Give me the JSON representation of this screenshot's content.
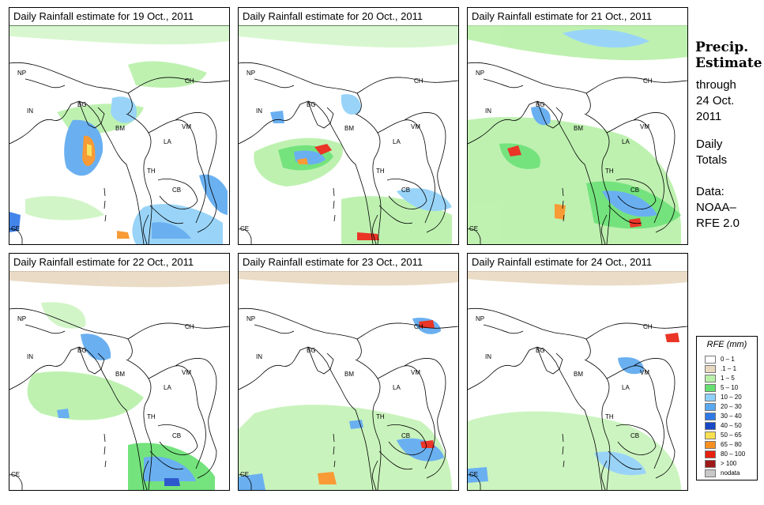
{
  "panels": [
    {
      "title": "Daily Rainfall estimate for  19 Oct., 2011"
    },
    {
      "title": "Daily Rainfall estimate for  20 Oct., 2011"
    },
    {
      "title": "Daily Rainfall estimate for  21 Oct., 2011"
    },
    {
      "title": "Daily Rainfall estimate for  22 Oct., 2011"
    },
    {
      "title": "Daily Rainfall estimate for  23 Oct., 2011"
    },
    {
      "title": "Daily Rainfall estimate for  24 Oct., 2011"
    }
  ],
  "country_labels": {
    "np": "NP",
    "in": "IN",
    "bg": "BG",
    "bm": "BM",
    "ch": "CH",
    "vm": "VM",
    "la": "LA",
    "th": "TH",
    "cb": "CB",
    "ce": "CE"
  },
  "side": {
    "title_line1": "Precip.",
    "title_line2": "Estimate",
    "through_line1": "through",
    "through_line2": "24 Oct.",
    "through_line3": "2011",
    "daily_line1": "Daily",
    "daily_line2": "Totals",
    "source_line1": "Data:",
    "source_line2": "NOAA–",
    "source_line3": "RFE 2.0"
  },
  "legend": {
    "title": "RFE (mm)",
    "items": [
      {
        "label": "0 – 1",
        "color": "#ffffff"
      },
      {
        "label": ".1 – 1",
        "color": "#e8d8c0"
      },
      {
        "label": "1 – 5",
        "color": "#b8f0a8"
      },
      {
        "label": "5 – 10",
        "color": "#66e070"
      },
      {
        "label": "10 – 20",
        "color": "#8fd0f8"
      },
      {
        "label": "20 – 30",
        "color": "#5aa8f0"
      },
      {
        "label": "30 – 40",
        "color": "#2f78e8"
      },
      {
        "label": "40 – 50",
        "color": "#1848c8"
      },
      {
        "label": "50 – 65",
        "color": "#f8e050"
      },
      {
        "label": "65 – 80",
        "color": "#f89020"
      },
      {
        "label": "80 – 100",
        "color": "#e82010"
      },
      {
        "label": "> 100",
        "color": "#a01818"
      },
      {
        "label": "nodata",
        "color": "#c8c8c8"
      }
    ]
  }
}
